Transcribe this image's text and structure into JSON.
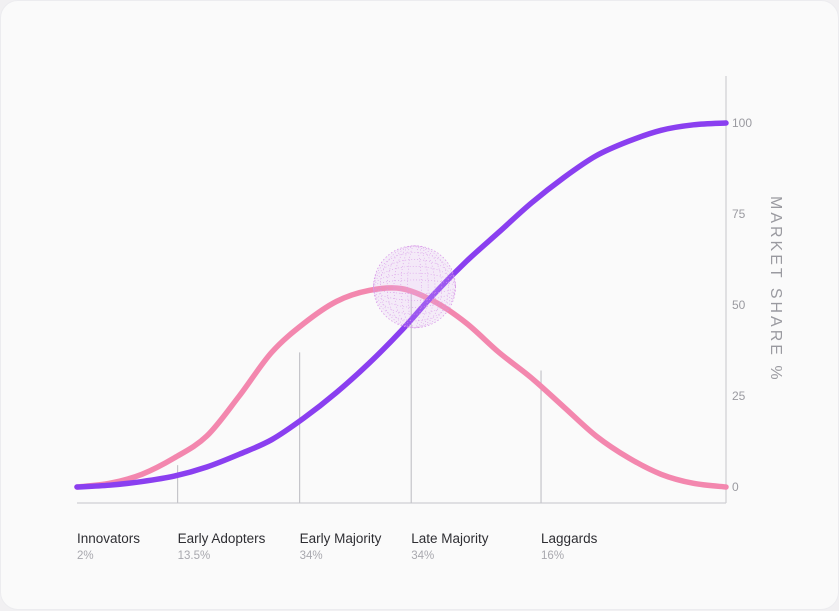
{
  "chart_data": {
    "type": "line",
    "title": "",
    "xlabel": "",
    "ylabel": "MARKET SHARE %",
    "ylim": [
      0,
      100
    ],
    "yticks": [
      "0",
      "25",
      "50",
      "75",
      "100"
    ],
    "grid": false,
    "categories": [
      {
        "label": "Innovators",
        "share": "2%"
      },
      {
        "label": "Early Adopters",
        "share": "13.5%"
      },
      {
        "label": "Early Majority",
        "share": "34%"
      },
      {
        "label": "Late Majority",
        "share": "34%"
      },
      {
        "label": "Laggards",
        "share": "16%"
      }
    ],
    "series": [
      {
        "color": "#8a3ff0",
        "x": [
          0,
          5,
          10,
          15,
          20,
          25,
          30,
          35,
          40,
          45,
          50,
          55,
          60,
          65,
          70,
          75,
          80,
          85,
          90,
          95,
          100
        ],
        "y": [
          0,
          0.5,
          1.5,
          3,
          5.5,
          9,
          13,
          19,
          26,
          34,
          43,
          53,
          62,
          70,
          78,
          85,
          91,
          95,
          98,
          99.5,
          100
        ]
      },
      {
        "color": "#f387ae",
        "x": [
          0,
          5,
          10,
          15,
          20,
          25,
          30,
          35,
          40,
          45,
          50,
          55,
          60,
          65,
          70,
          75,
          80,
          85,
          90,
          95,
          100
        ],
        "y": [
          0,
          1,
          3.5,
          8,
          14,
          25,
          37,
          45,
          51,
          54,
          54.5,
          51,
          45,
          37,
          30,
          22,
          14,
          8,
          3.5,
          1,
          0
        ]
      }
    ],
    "dividers": [
      {
        "x": 15.5,
        "y": 6
      },
      {
        "x": 34.3,
        "y": 37
      },
      {
        "x": 51.5,
        "y": 54
      },
      {
        "x": 71.5,
        "y": 32
      }
    ],
    "highlight": {
      "x": 52,
      "y": 55
    }
  }
}
